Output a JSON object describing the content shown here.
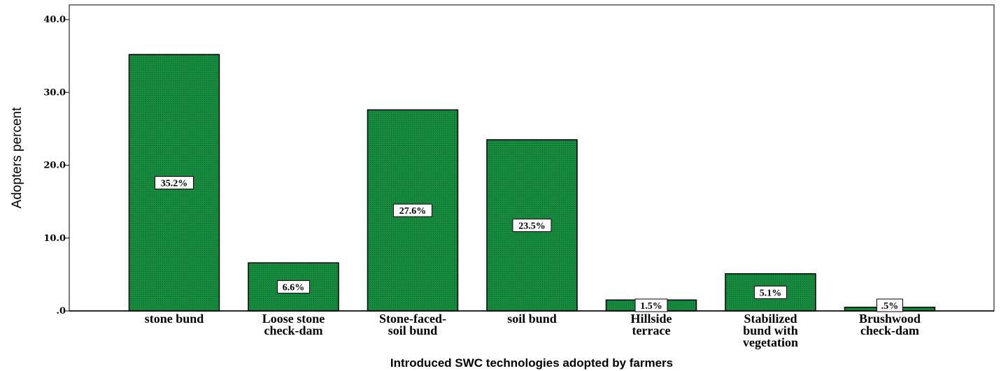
{
  "chart_data": {
    "type": "bar",
    "categories": [
      [
        "stone bund"
      ],
      [
        "Loose stone",
        "check-dam"
      ],
      [
        "Stone-faced-",
        "soil bund"
      ],
      [
        "soil bund"
      ],
      [
        "Hillside",
        "terrace"
      ],
      [
        "Stabilized",
        "bund with",
        "vegetation"
      ],
      [
        "Brushwood",
        "check-dam"
      ]
    ],
    "values": [
      35.2,
      6.6,
      27.6,
      23.5,
      1.5,
      5.1,
      0.5
    ],
    "data_labels": [
      "35.2%",
      "6.6%",
      "27.6%",
      "23.5%",
      "1.5%",
      "5.1%",
      ".5%"
    ],
    "xlabel": "Introduced SWC technologies adopted by farmers",
    "ylabel": "Adopters percent",
    "ylim": [
      0,
      40
    ],
    "yticks": [
      0,
      10,
      20,
      30,
      40
    ],
    "ytick_labels": [
      ".0",
      "10.0",
      "20.0",
      "30.0",
      "40.0"
    ],
    "bar_color": "#168a3f",
    "grid": false,
    "legend": "none"
  }
}
